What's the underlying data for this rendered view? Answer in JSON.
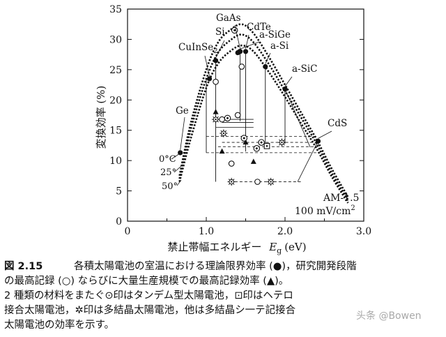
{
  "chart_data": {
    "type": "scatter",
    "xlabel": "禁止帯幅エネルギー",
    "xlabel_symbol": "E",
    "xlabel_subscript": "g",
    "xlabel_unit": "(eV)",
    "ylabel": "変換効率 (%)",
    "xlim": [
      0,
      3.0
    ],
    "ylim": [
      0,
      35
    ],
    "xticks": [
      "0",
      "1.0",
      "2.0",
      "3.0"
    ],
    "yticks": [
      "0",
      "5",
      "10",
      "15",
      "20",
      "25",
      "30",
      "35"
    ],
    "conditions": [
      "AM-1.5",
      "100 mV/cm"
    ],
    "conditions_sup": "2",
    "theoretical_curves": [
      {
        "name": "0°C",
        "x": [
          0.66,
          0.8,
          1.0,
          1.15,
          1.3,
          1.45,
          1.6,
          1.8,
          2.0,
          2.2,
          2.4,
          2.6,
          2.8
        ],
        "y": [
          7.5,
          16,
          25,
          29.5,
          31.5,
          32.5,
          31,
          27,
          22.5,
          18,
          13.5,
          8.5,
          4
        ]
      },
      {
        "name": "25°",
        "x": [
          0.66,
          0.8,
          1.0,
          1.15,
          1.3,
          1.45,
          1.6,
          1.8,
          2.0,
          2.2,
          2.4,
          2.6,
          2.8
        ],
        "y": [
          7,
          15,
          23.5,
          27.8,
          29.8,
          30.8,
          29.5,
          25.8,
          21.5,
          17.2,
          12.8,
          7.8,
          3.5
        ]
      },
      {
        "name": "50°",
        "x": [
          0.66,
          0.8,
          1.0,
          1.15,
          1.3,
          1.45,
          1.6,
          1.8,
          2.0,
          2.2,
          2.4,
          2.6,
          2.8
        ],
        "y": [
          6.5,
          13.5,
          22,
          26,
          28,
          29,
          28,
          24.5,
          20.5,
          16.2,
          12,
          7.2,
          3
        ]
      }
    ],
    "materials": [
      {
        "name": "Ge",
        "eg": 0.67,
        "theory": 11.3
      },
      {
        "name": "CuInSe",
        "sub": "2",
        "eg": 1.04,
        "theory": 23.5
      },
      {
        "name": "Si",
        "eg": 1.12,
        "theory": 26.5
      },
      {
        "name": "GaAs",
        "eg": 1.43,
        "theory": 28
      },
      {
        "name": "CdTe",
        "eg": 1.5,
        "theory": 28
      },
      {
        "name": "a-SiGe",
        "eg": 1.4,
        "theory": 27.8
      },
      {
        "name": "a-Si",
        "eg": 1.75,
        "theory": 25.5
      },
      {
        "name": "a-SiC",
        "eg": 2.0,
        "theory": 21.8
      },
      {
        "name": "CdS",
        "eg": 2.42,
        "theory": 13.2
      }
    ],
    "theoretical_points": {
      "x": [
        0.67,
        1.04,
        1.12,
        1.4,
        1.43,
        1.5,
        1.75,
        2.0,
        2.42
      ],
      "y": [
        11.3,
        23.5,
        26.5,
        27.8,
        28,
        28,
        25.5,
        21.8,
        13.2
      ]
    },
    "rd_record_points": {
      "x": [
        1.12,
        1.2,
        1.4,
        1.45,
        1.32,
        1.65
      ],
      "y": [
        23,
        16.8,
        17.5,
        25.5,
        9.5,
        6.5
      ]
    },
    "mass_production_points": {
      "x": [
        1.12,
        1.2,
        1.5,
        1.6
      ],
      "y": [
        18,
        11.5,
        13,
        9.8
      ]
    },
    "tandem_points": {
      "x": [
        1.36,
        1.27,
        1.48,
        1.7,
        1.64
      ],
      "y": [
        31.5,
        17,
        13.7,
        13,
        12
      ]
    },
    "heterojunction_points": {
      "x": [
        1.77
      ],
      "y": [
        12.4
      ]
    },
    "polycrystal_points": {
      "x": [
        1.12,
        1.22,
        1.32,
        1.82,
        1.96
      ],
      "y": [
        16.8,
        14.5,
        6.5,
        6.5,
        13
      ]
    }
  },
  "caption": {
    "number": "図 2.15",
    "lines": [
      "各積太陽電池の室温における理論限界効率 (●)，研究開発段階",
      "の最高記録 (○) ならびに大量生産規模での最高記録効率 (▲)。",
      "2 種類の材料をまたぐ⊙印はタンデム型太陽電池，⊡印はヘテロ",
      "接合太陽電池，✲印は多結晶太陽電池，他は多結晶シ一テ記接合",
      "太陽電池の効率を示す。"
    ]
  },
  "watermark": "头条 @Bowen",
  "colors": {
    "ink": "#111111",
    "background": "#ffffff"
  }
}
